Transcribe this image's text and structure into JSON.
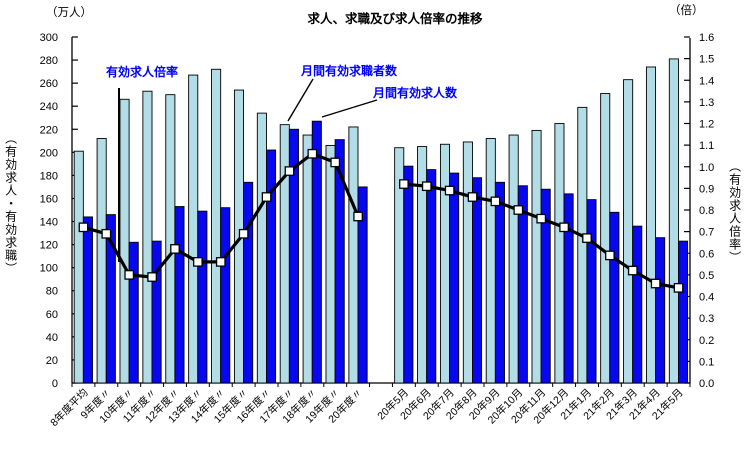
{
  "chart_data": {
    "type": "bar",
    "subtype": "dual-axis bar + line combo",
    "title": "求人、求職及び求人倍率の推移",
    "left_unit": "（万人）",
    "right_unit": "（倍）",
    "left_axis_title": "（有効求人・有効求職）",
    "right_axis_title": "（有効求人倍率）",
    "left_axis": {
      "min": 0,
      "max": 300,
      "ticks": [
        0,
        20,
        40,
        60,
        80,
        100,
        120,
        140,
        160,
        180,
        200,
        220,
        240,
        260,
        280,
        300
      ]
    },
    "right_axis": {
      "min": 0,
      "max": 1.6,
      "ticks": [
        "0.0",
        "0.1",
        "0.2",
        "0.3",
        "0.4",
        "0.5",
        "0.6",
        "0.7",
        "0.8",
        "0.9",
        "1.0",
        "1.1",
        "1.2",
        "1.3",
        "1.4",
        "1.5",
        "1.6"
      ]
    },
    "grid": false,
    "legend_position": "inline-annotations",
    "categories": [
      "8年度平均",
      "9年度〃",
      "10年度〃",
      "11年度〃",
      "12年度〃",
      "13年度〃",
      "14年度〃",
      "15年度〃",
      "16年度〃",
      "17年度〃",
      "18年度〃",
      "19年度〃",
      "20年度〃",
      "",
      "20年5月",
      "20年6月",
      "20年7月",
      "20年8月",
      "20年9月",
      "20年10月",
      "20年11月",
      "20年12月",
      "21年1月",
      "21年2月",
      "21年3月",
      "21年4月",
      "21年5月"
    ],
    "series": [
      {
        "name": "月間有効求職者数",
        "type": "bar",
        "axis": "left",
        "color": "#b3dde6",
        "values": [
          201,
          212,
          246,
          253,
          250,
          267,
          272,
          254,
          234,
          224,
          215,
          206,
          222,
          null,
          204,
          205,
          207,
          209,
          212,
          215,
          219,
          225,
          239,
          251,
          263,
          274,
          281
        ]
      },
      {
        "name": "月間有効求人数",
        "type": "bar",
        "axis": "left",
        "color": "#0808f0",
        "values": [
          144,
          146,
          122,
          123,
          153,
          149,
          152,
          174,
          202,
          220,
          227,
          211,
          170,
          null,
          188,
          185,
          182,
          178,
          174,
          171,
          168,
          164,
          159,
          148,
          136,
          126,
          123
        ]
      },
      {
        "name": "有効求人倍率",
        "type": "line",
        "axis": "right",
        "color": "#000000",
        "marker": "white-square",
        "values": [
          0.72,
          0.69,
          0.5,
          0.49,
          0.62,
          0.56,
          0.56,
          0.69,
          0.86,
          0.98,
          1.06,
          1.02,
          0.77,
          null,
          0.92,
          0.91,
          0.89,
          0.86,
          0.84,
          0.8,
          0.76,
          0.72,
          0.67,
          0.59,
          0.52,
          0.46,
          0.44
        ]
      }
    ],
    "annotations": [
      {
        "label": "有効求人倍率"
      },
      {
        "label": "月間有効求職者数"
      },
      {
        "label": "月間有効求人数"
      }
    ],
    "annotation_color": "#0000ff",
    "bar_outline_color": "#000000"
  }
}
